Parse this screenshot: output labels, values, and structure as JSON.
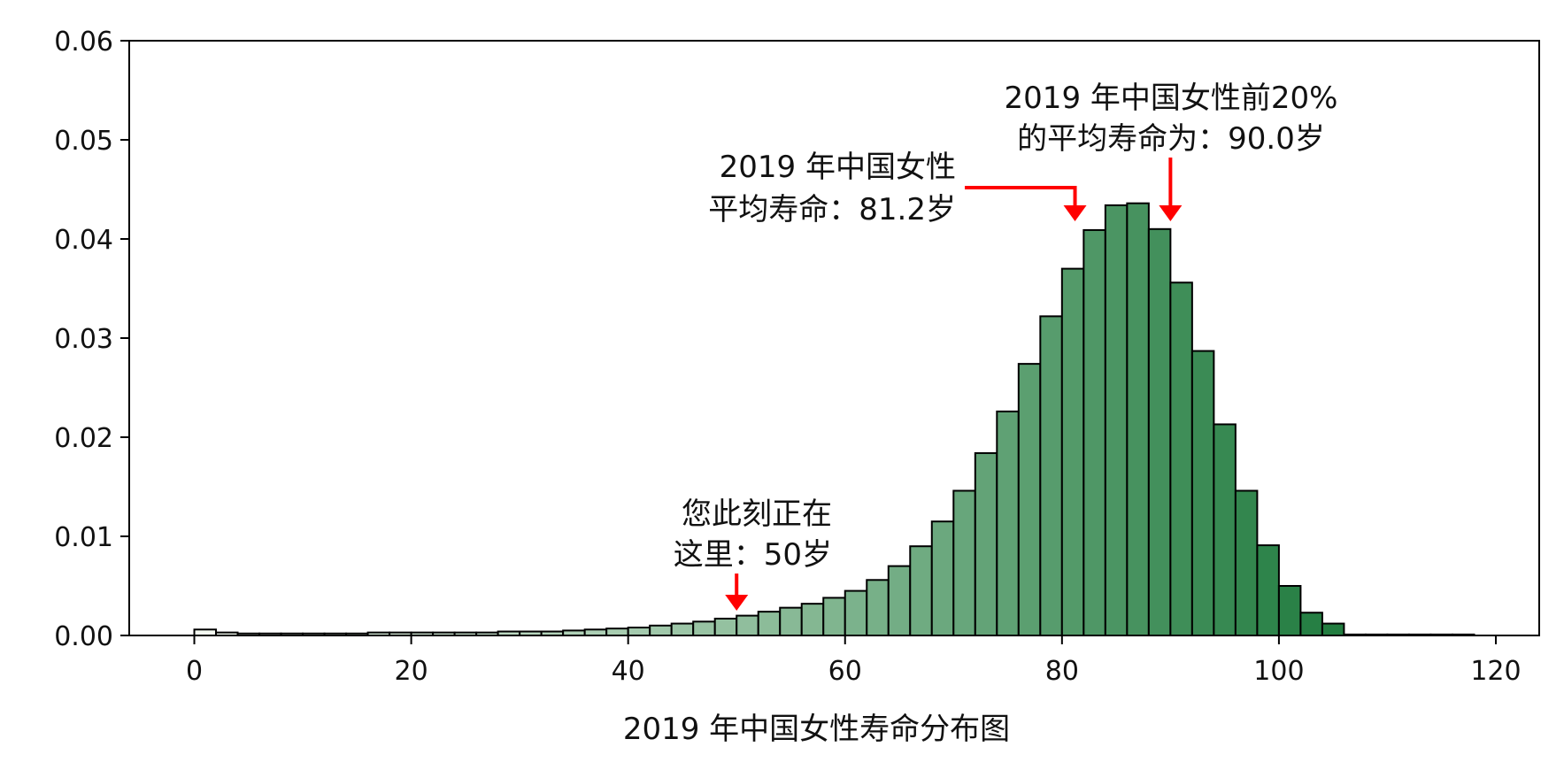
{
  "chart_data": {
    "type": "bar",
    "xlabel": "2019 年中国女性寿命分布图",
    "ylabel": "",
    "xlim": [
      -6,
      124
    ],
    "ylim": [
      0,
      0.06
    ],
    "xticks": [
      0,
      20,
      40,
      60,
      80,
      100,
      120
    ],
    "xtick_labels": [
      "0",
      "20",
      "40",
      "60",
      "80",
      "100",
      "120"
    ],
    "yticks": [
      0,
      0.01,
      0.02,
      0.03,
      0.04,
      0.05,
      0.06
    ],
    "ytick_labels": [
      "0.00",
      "0.01",
      "0.02",
      "0.03",
      "0.04",
      "0.05",
      "0.06"
    ],
    "bin_width": 2,
    "bin_starts": [
      0,
      2,
      4,
      6,
      8,
      10,
      12,
      14,
      16,
      18,
      20,
      22,
      24,
      26,
      28,
      30,
      32,
      34,
      36,
      38,
      40,
      42,
      44,
      46,
      48,
      50,
      52,
      54,
      56,
      58,
      60,
      62,
      64,
      66,
      68,
      70,
      72,
      74,
      76,
      78,
      80,
      82,
      84,
      86,
      88,
      90,
      92,
      94,
      96,
      98,
      100,
      102,
      104,
      106,
      108,
      110,
      112,
      114,
      116
    ],
    "values": [
      0.0006,
      0.0003,
      0.0002,
      0.0002,
      0.0002,
      0.0002,
      0.0002,
      0.0002,
      0.0003,
      0.0003,
      0.0003,
      0.0003,
      0.0003,
      0.0003,
      0.0004,
      0.0004,
      0.0004,
      0.0005,
      0.0006,
      0.0007,
      0.0008,
      0.001,
      0.0012,
      0.0014,
      0.0017,
      0.002,
      0.0024,
      0.0028,
      0.0032,
      0.0038,
      0.0045,
      0.0056,
      0.007,
      0.009,
      0.0115,
      0.0146,
      0.0184,
      0.0226,
      0.0274,
      0.0322,
      0.037,
      0.0409,
      0.0434,
      0.0436,
      0.041,
      0.0356,
      0.0287,
      0.0213,
      0.0146,
      0.0091,
      0.005,
      0.0023,
      0.0012,
      0.0001,
      0.0001,
      0.0001,
      0.0001,
      0.0001,
      0.0001
    ],
    "colormap": [
      "#f5fbf2",
      "#0a6e2c"
    ],
    "edge_color": "#000000",
    "annotations": [
      {
        "lines": [
          "您此刻正在",
          "这里：50岁"
        ],
        "x": 50
      },
      {
        "lines": [
          "2019 年中国女性",
          "平均寿命：81.2岁"
        ],
        "x": 81.2
      },
      {
        "lines": [
          "2019 年中国女性前20%",
          "的平均寿命为：90.0岁"
        ],
        "x": 90.0
      }
    ],
    "arrow_color": "#ff0000"
  }
}
